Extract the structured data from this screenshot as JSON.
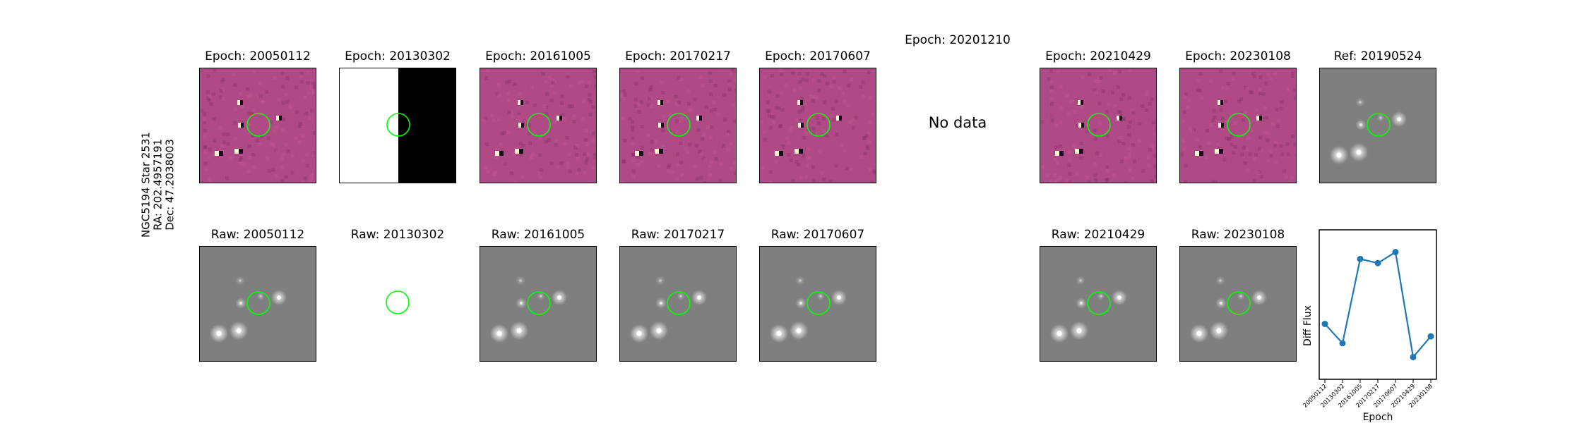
{
  "side_label": {
    "star": "NGC5194 Star 2531",
    "ra": "RA: 202.4957191",
    "dec": "Dec: 47.2038003"
  },
  "top_row": [
    {
      "title": "Epoch: 20050112",
      "kind": "diff"
    },
    {
      "title": "Epoch: 20130302",
      "kind": "split"
    },
    {
      "title": "Epoch: 20161005",
      "kind": "diff"
    },
    {
      "title": "Epoch: 20170217",
      "kind": "diff"
    },
    {
      "title": "Epoch: 20170607",
      "kind": "diff"
    },
    {
      "title": "Epoch: 20201210",
      "kind": "nodata",
      "message": "No data"
    },
    {
      "title": "Epoch: 20210429",
      "kind": "diff"
    },
    {
      "title": "Epoch: 20230108",
      "kind": "diff"
    },
    {
      "title": "Ref: 20190524",
      "kind": "ref"
    }
  ],
  "bottom_row": [
    {
      "title": "Raw: 20050112",
      "kind": "raw"
    },
    {
      "title": "Raw: 20130302",
      "kind": "blank"
    },
    {
      "title": "Raw: 20161005",
      "kind": "raw"
    },
    {
      "title": "Raw: 20170217",
      "kind": "raw"
    },
    {
      "title": "Raw: 20170607",
      "kind": "raw"
    },
    {
      "title": "",
      "kind": "empty"
    },
    {
      "title": "Raw: 20210429",
      "kind": "raw"
    },
    {
      "title": "Raw: 20230108",
      "kind": "raw"
    }
  ],
  "colors": {
    "diff_background": "#b04a86",
    "raw_background": "#7f7f7f",
    "marker_circle": "#00ff00",
    "series_line": "#1f77b4"
  },
  "chart_data": {
    "type": "line",
    "x": [
      "20050112",
      "20130302",
      "20161005",
      "20170217",
      "20170607",
      "20210429",
      "20230108"
    ],
    "series": [
      {
        "values": [
          0.36,
          0.22,
          0.83,
          0.8,
          0.88,
          0.12,
          0.27
        ]
      }
    ],
    "xlabel": "Epoch",
    "ylabel": "Diff Flux",
    "ylim": [
      0,
      1
    ],
    "grid": false,
    "legend": "none"
  }
}
